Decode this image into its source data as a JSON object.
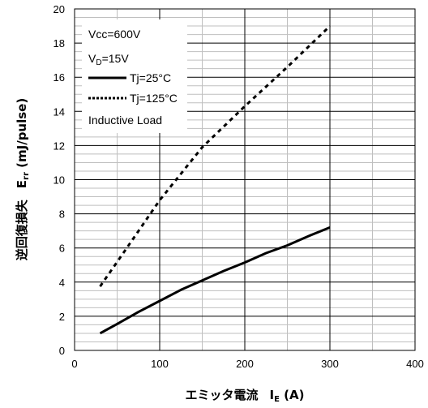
{
  "chart_data": {
    "type": "line",
    "xlabel_main": "エミッタ電流",
    "xlabel_sym": "I",
    "xlabel_sub": "E",
    "xlabel_unit": " (A)",
    "ylabel_main": "逆回復損失",
    "ylabel_sym": "E",
    "ylabel_sub": "rr",
    "ylabel_unit": " (mJ/pulse)",
    "xlim": [
      0,
      400
    ],
    "ylim": [
      0,
      20
    ],
    "x_major_ticks": [
      0,
      100,
      200,
      300,
      400
    ],
    "x_tick_labels": [
      "0",
      "100",
      "200",
      "300",
      "400"
    ],
    "y_major_ticks": [
      0,
      2,
      4,
      6,
      8,
      10,
      12,
      14,
      16,
      18,
      20
    ],
    "y_tick_labels": [
      "0",
      "2",
      "4",
      "6",
      "8",
      "10",
      "12",
      "14",
      "16",
      "18",
      "20"
    ],
    "x_minor_step": 50,
    "y_minor_step": 0.5,
    "grid": true,
    "legend_position": "top-left",
    "legend_lines": [
      {
        "text": "Vcc=600V"
      },
      {
        "text_main": "V",
        "text_sub": "D",
        "text_rest": "=15V"
      },
      {
        "text": "Tj=25°C",
        "series_ref": 0
      },
      {
        "text": "Tj=125°C",
        "series_ref": 1
      },
      {
        "text": "Inductive Load"
      }
    ],
    "series": [
      {
        "name": "Tj=25°C",
        "style": "solid",
        "color": "#000000",
        "x": [
          30,
          50,
          75,
          100,
          125,
          150,
          175,
          200,
          225,
          250,
          275,
          300
        ],
        "y": [
          1.0,
          1.55,
          2.25,
          2.9,
          3.55,
          4.1,
          4.65,
          5.15,
          5.7,
          6.15,
          6.7,
          7.2
        ]
      },
      {
        "name": "Tj=125°C",
        "style": "dotted",
        "color": "#000000",
        "x": [
          30,
          60,
          100,
          150,
          200,
          250,
          300
        ],
        "y": [
          3.75,
          5.9,
          8.8,
          11.9,
          14.3,
          16.6,
          19.0
        ]
      }
    ]
  }
}
